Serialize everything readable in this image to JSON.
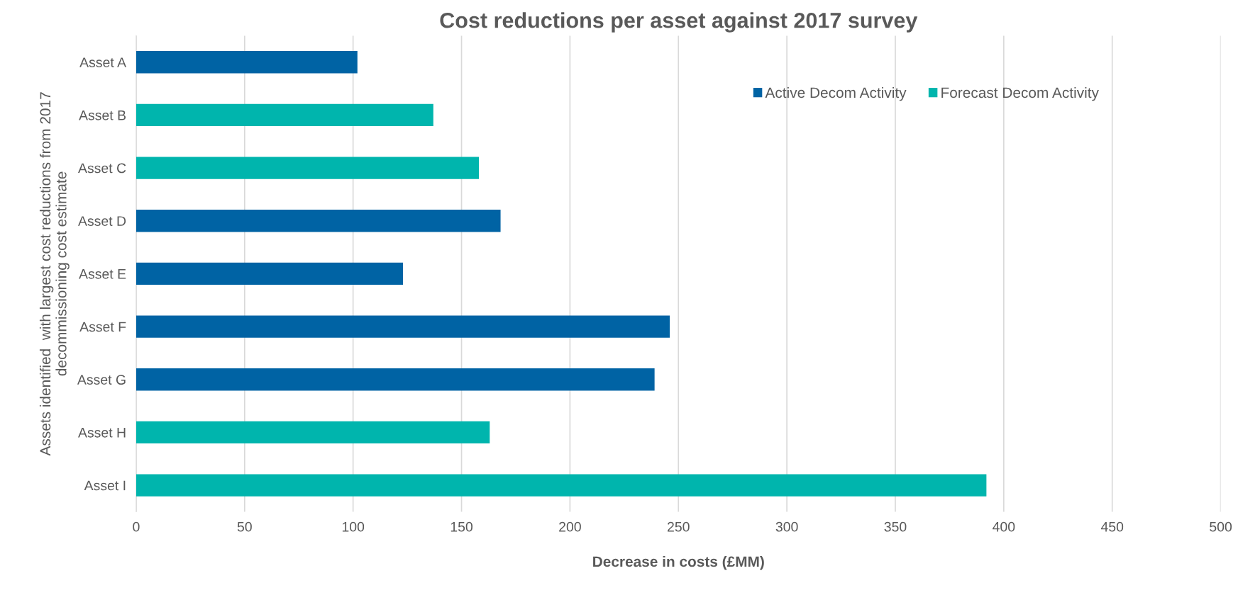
{
  "chart_data": {
    "type": "bar",
    "orientation": "horizontal",
    "title": "Cost reductions per asset against 2017 survey",
    "xlabel": "Decrease in costs (£MM)",
    "ylabel": "Assets identified  with largest cost reductions from 2017\ndecommissioning cost estimate",
    "categories": [
      "Asset A",
      "Asset B",
      "Asset C",
      "Asset D",
      "Asset E",
      "Asset F",
      "Asset G",
      "Asset H",
      "Asset I"
    ],
    "series": [
      {
        "name": "Active Decom Activity",
        "color": "#0063a4",
        "values": [
          102,
          null,
          null,
          168,
          123,
          246,
          239,
          null,
          null
        ]
      },
      {
        "name": "Forecast Decom Activity",
        "color": "#00b5ad",
        "values": [
          null,
          137,
          158,
          null,
          null,
          null,
          null,
          163,
          392
        ]
      }
    ],
    "xlim": [
      0,
      500
    ],
    "xticks": [
      0,
      50,
      100,
      150,
      200,
      250,
      300,
      350,
      400,
      450,
      500
    ],
    "grid": "x",
    "legend": "top right"
  }
}
